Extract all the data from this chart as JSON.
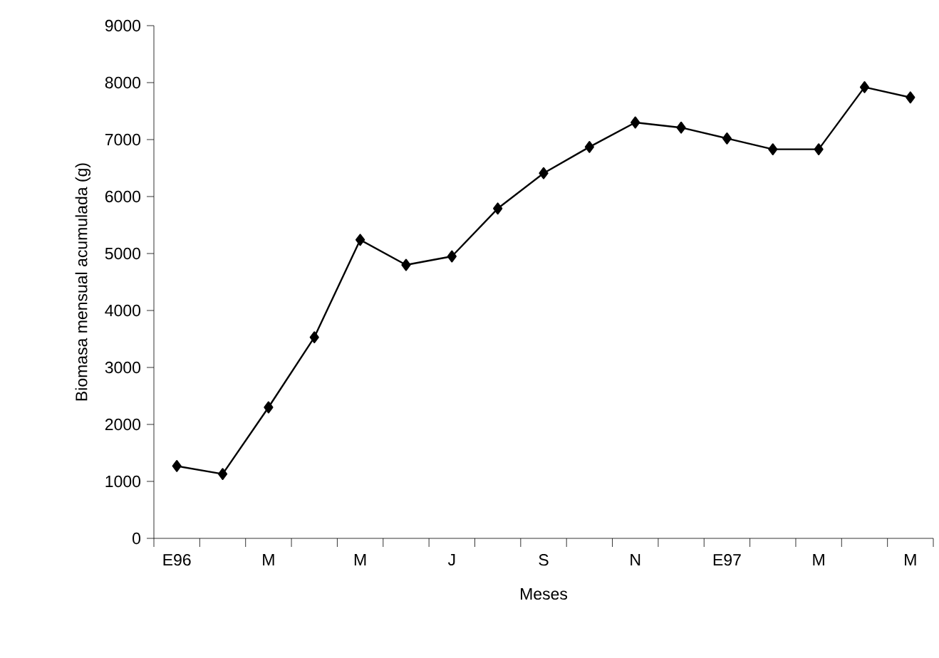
{
  "chart_data": {
    "type": "line",
    "xlabel": "Meses",
    "ylabel": "Biomasa mensual acumulada (g)",
    "categories": [
      "E96",
      null,
      "M",
      null,
      "M",
      null,
      "J",
      null,
      "S",
      null,
      "N",
      null,
      "E97",
      null,
      "M",
      null,
      "M"
    ],
    "values": [
      1270,
      1130,
      2300,
      3530,
      5240,
      4800,
      4950,
      5790,
      6410,
      6870,
      7300,
      7210,
      7020,
      6830,
      6830,
      7920,
      7740
    ],
    "color": "#000000",
    "marker": "diamond",
    "line_style": "solid",
    "ylim": [
      0,
      9000
    ],
    "yticks": [
      0,
      1000,
      2000,
      3000,
      4000,
      5000,
      6000,
      7000,
      8000,
      9000
    ]
  }
}
